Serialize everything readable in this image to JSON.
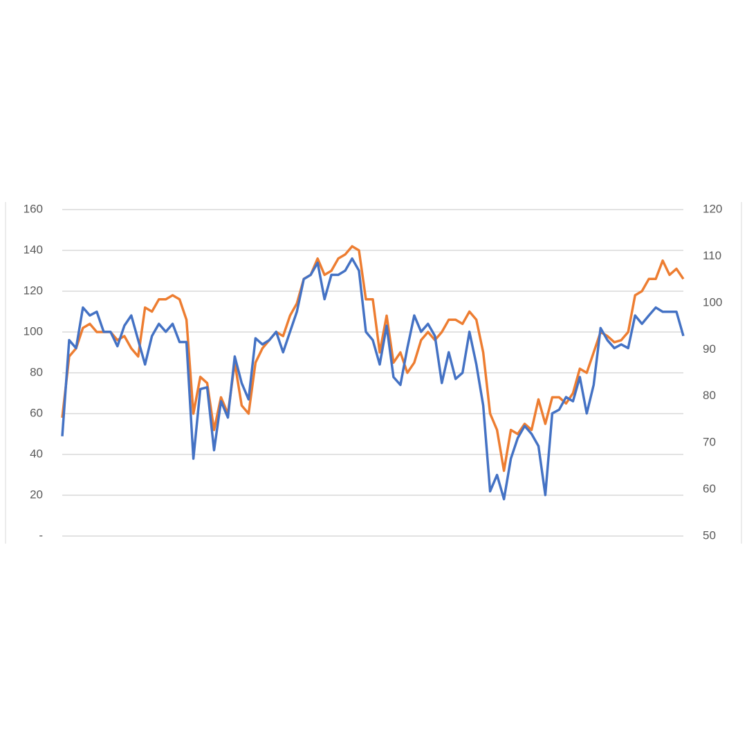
{
  "chart_data": {
    "type": "line",
    "ylim": [
      0,
      160
    ],
    "yticks": [
      {
        "value": 0,
        "label": "-"
      },
      20,
      40,
      60,
      80,
      100,
      120,
      140,
      160
    ],
    "y2lim": [
      50,
      120
    ],
    "y2ticks": [
      50,
      60,
      70,
      80,
      90,
      100,
      110,
      120
    ],
    "grid": true,
    "series": [
      {
        "color": "#ed7d31",
        "values": [
          58,
          88,
          92,
          102,
          104,
          100,
          100,
          100,
          96,
          98,
          92,
          88,
          112,
          110,
          116,
          116,
          118,
          116,
          106,
          60,
          78,
          75,
          52,
          68,
          60,
          85,
          64,
          60,
          85,
          92,
          96,
          100,
          98,
          108,
          114,
          126,
          128,
          136,
          128,
          130,
          136,
          138,
          142,
          140,
          116,
          116,
          90,
          108,
          85,
          90,
          80,
          85,
          96,
          100,
          96,
          100,
          106,
          106,
          104,
          110,
          106,
          90,
          60,
          52,
          32,
          52,
          50,
          55,
          52,
          67,
          55,
          68,
          68,
          65,
          70,
          82,
          80,
          90,
          100,
          98,
          95,
          96,
          100,
          118,
          120,
          126,
          126,
          135,
          128,
          131,
          126
        ]
      },
      {
        "color": "#4472c4",
        "axis": "y2",
        "values": [
          71.4,
          92,
          90.3,
          99,
          97.3,
          98.1,
          93.8,
          93.8,
          90.7,
          95.1,
          97.3,
          92,
          86.8,
          92.9,
          95.5,
          93.8,
          95.5,
          91.6,
          91.6,
          66.6,
          81.5,
          81.9,
          68.4,
          78.9,
          75.4,
          88.5,
          82.8,
          79.3,
          92.4,
          91.1,
          92,
          93.8,
          89.4,
          93.8,
          98.1,
          105.1,
          106,
          108.6,
          100.8,
          106,
          106,
          106.9,
          109.5,
          106.9,
          93.8,
          92,
          86.8,
          95.1,
          84.1,
          82.4,
          90.3,
          97.3,
          93.8,
          95.5,
          92.9,
          82.8,
          89.4,
          83.7,
          85,
          93.8,
          86.8,
          78,
          59.6,
          63.1,
          57.9,
          66.6,
          71,
          73.6,
          71.9,
          69.3,
          58.8,
          76.3,
          77.1,
          79.8,
          78.9,
          84.1,
          76.3,
          82.4,
          94.6,
          92,
          90.3,
          91.1,
          90.3,
          97.3,
          95.5,
          97.3,
          99,
          98.1,
          98.1,
          98.1,
          92.9
        ]
      }
    ]
  }
}
